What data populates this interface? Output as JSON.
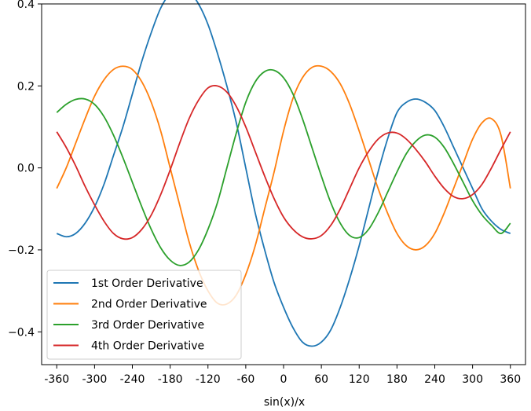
{
  "chart_data": {
    "type": "line",
    "title": "",
    "xlabel": "sin(x)/x",
    "ylabel": "",
    "xlim": [
      -384,
      384
    ],
    "ylim": [
      -0.48,
      0.4
    ],
    "x_ticks": [
      -360,
      -300,
      -240,
      -180,
      -120,
      -60,
      0,
      60,
      120,
      180,
      240,
      300,
      360
    ],
    "x_tick_labels": [
      "-360",
      "-300",
      "-240",
      "-180",
      "-120",
      "-60",
      "0",
      "60",
      "120",
      "180",
      "240",
      "300",
      "360"
    ],
    "y_ticks": [
      -0.4,
      -0.2,
      0.0,
      0.2,
      0.4
    ],
    "y_tick_labels": [
      "−0.4",
      "−0.2",
      "0.0",
      "0.2",
      "0.4"
    ],
    "grid": false,
    "legend_position": "lower-left",
    "x": [
      -360,
      -345,
      -330,
      -315,
      -300,
      -285,
      -270,
      -255,
      -240,
      -225,
      -210,
      -195,
      -180,
      -165,
      -150,
      -135,
      -120,
      -105,
      -90,
      -75,
      -60,
      -45,
      -30,
      -15,
      0,
      15,
      30,
      45,
      60,
      75,
      90,
      105,
      120,
      135,
      150,
      165,
      180,
      195,
      210,
      225,
      240,
      255,
      270,
      285,
      300,
      315,
      330,
      345,
      360
    ],
    "series": [
      {
        "name": "1st Order Derivative",
        "color": "#1f77b4",
        "values": [
          -0.16,
          -0.168,
          -0.16,
          -0.135,
          -0.095,
          -0.04,
          0.03,
          0.1,
          0.18,
          0.26,
          0.33,
          0.39,
          0.425,
          0.435,
          0.43,
          0.4,
          0.35,
          0.28,
          0.2,
          0.11,
          0.0,
          -0.11,
          -0.2,
          -0.28,
          -0.34,
          -0.39,
          -0.425,
          -0.435,
          -0.425,
          -0.395,
          -0.34,
          -0.27,
          -0.19,
          -0.1,
          -0.01,
          0.07,
          0.135,
          0.16,
          0.168,
          0.16,
          0.14,
          0.1,
          0.05,
          0.0,
          -0.05,
          -0.1,
          -0.13,
          -0.15,
          -0.16
        ]
      },
      {
        "name": "2nd Order Derivative",
        "color": "#ff7f0e",
        "values": [
          -0.05,
          0.0,
          0.06,
          0.12,
          0.175,
          0.215,
          0.24,
          0.248,
          0.24,
          0.21,
          0.16,
          0.09,
          0.0,
          -0.09,
          -0.18,
          -0.25,
          -0.3,
          -0.33,
          -0.332,
          -0.31,
          -0.26,
          -0.19,
          -0.1,
          -0.01,
          0.09,
          0.17,
          0.22,
          0.245,
          0.248,
          0.235,
          0.205,
          0.155,
          0.09,
          0.02,
          -0.05,
          -0.11,
          -0.16,
          -0.19,
          -0.2,
          -0.19,
          -0.16,
          -0.11,
          -0.05,
          0.01,
          0.07,
          0.11,
          0.12,
          0.08,
          -0.05
        ]
      },
      {
        "name": "3rd Order Derivative",
        "color": "#2ca02c",
        "values": [
          0.135,
          0.155,
          0.167,
          0.168,
          0.155,
          0.125,
          0.08,
          0.025,
          -0.035,
          -0.095,
          -0.15,
          -0.195,
          -0.225,
          -0.238,
          -0.23,
          -0.2,
          -0.15,
          -0.085,
          0.0,
          0.085,
          0.16,
          0.21,
          0.235,
          0.238,
          0.22,
          0.18,
          0.12,
          0.05,
          -0.02,
          -0.085,
          -0.135,
          -0.165,
          -0.17,
          -0.15,
          -0.11,
          -0.06,
          -0.01,
          0.035,
          0.065,
          0.08,
          0.075,
          0.05,
          0.01,
          -0.035,
          -0.08,
          -0.115,
          -0.14,
          -0.16,
          -0.135
        ]
      },
      {
        "name": "4th Order Derivative",
        "color": "#d62728",
        "values": [
          0.088,
          0.05,
          0.005,
          -0.045,
          -0.09,
          -0.13,
          -0.16,
          -0.173,
          -0.17,
          -0.15,
          -0.115,
          -0.065,
          -0.005,
          0.06,
          0.12,
          0.165,
          0.195,
          0.2,
          0.185,
          0.15,
          0.1,
          0.04,
          -0.02,
          -0.075,
          -0.12,
          -0.15,
          -0.168,
          -0.173,
          -0.165,
          -0.14,
          -0.1,
          -0.05,
          0.0,
          0.04,
          0.07,
          0.085,
          0.085,
          0.07,
          0.045,
          0.015,
          -0.02,
          -0.05,
          -0.07,
          -0.075,
          -0.065,
          -0.04,
          0.0,
          0.045,
          0.088
        ]
      }
    ]
  }
}
